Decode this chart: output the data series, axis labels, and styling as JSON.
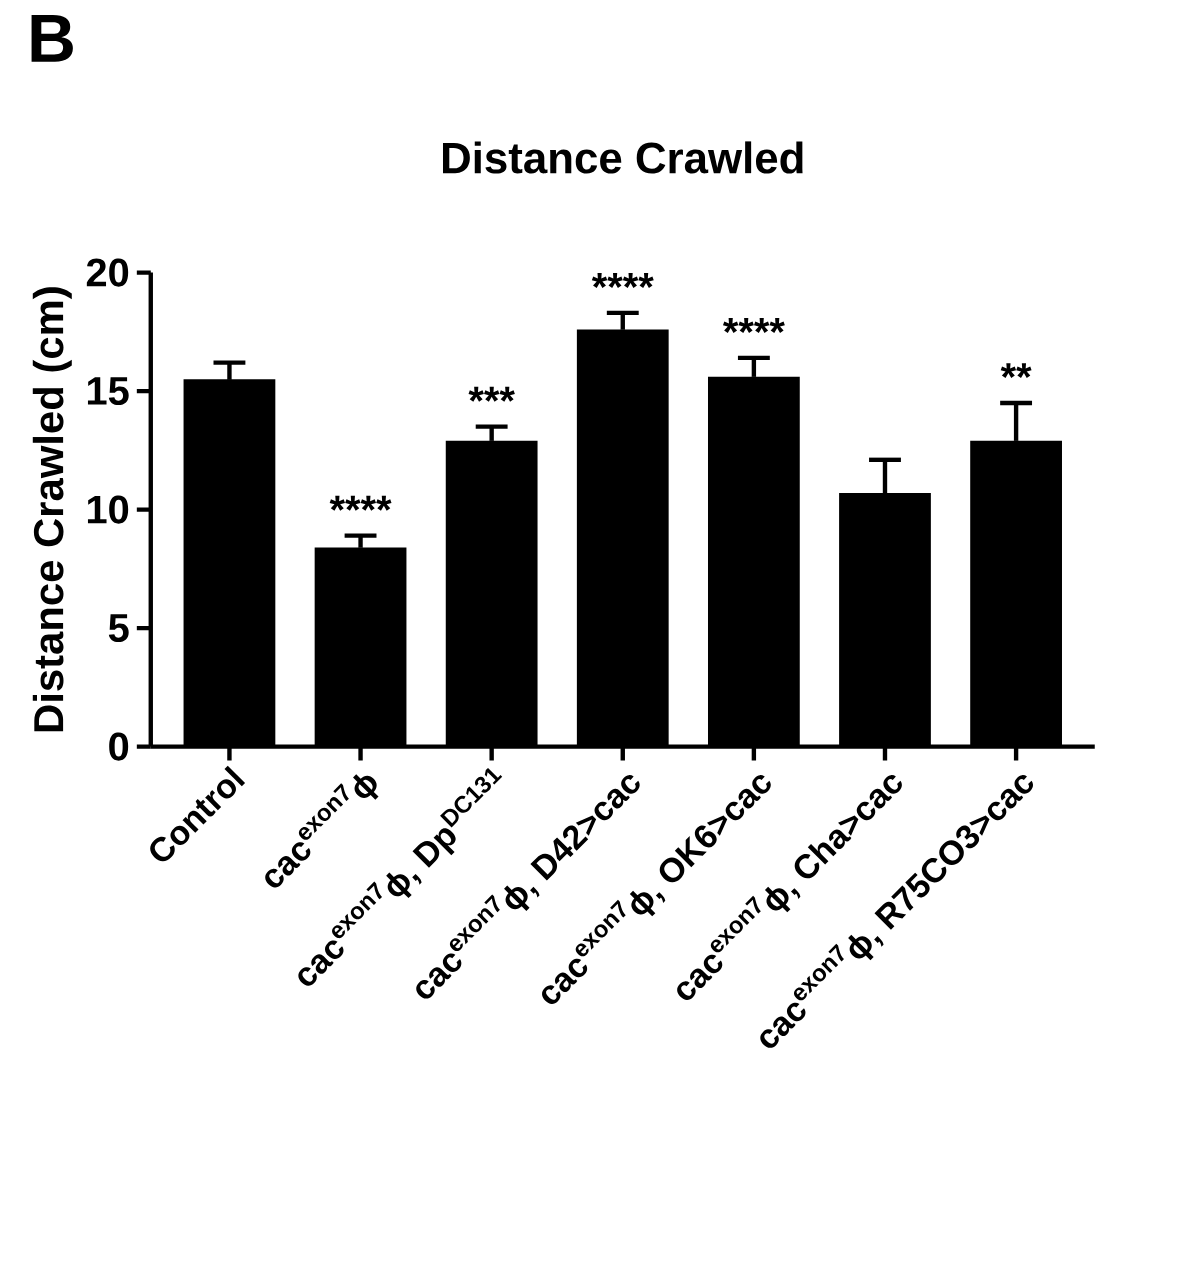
{
  "chart_data": {
    "type": "bar",
    "title": "Distance Crawled",
    "ylabel": "Distance Crawled (cm)",
    "categories": [
      "Control",
      "cac$^{exon7}$ϕ",
      "cac$^{exon7}$ϕ, Dp$^{DC131}$",
      "cac$^{exon7}$ϕ, D42>cac",
      "cac$^{exon7}$ϕ, OK6>cac",
      "cac$^{exon7}$ϕ, Cha>cac",
      "cac$^{exon7}$ϕ, R75CO3>cac"
    ],
    "values": [
      15.5,
      8.4,
      12.9,
      17.6,
      15.6,
      10.7,
      12.9
    ],
    "errors": [
      0.7,
      0.5,
      0.6,
      0.7,
      0.8,
      1.4,
      1.6
    ],
    "color": "#000000",
    "value_labels": [
      null,
      "****",
      "***",
      "****",
      "****",
      null,
      "**"
    ],
    "ylim": [
      0,
      20
    ],
    "yticks": [
      0,
      5,
      10,
      15,
      20
    ],
    "grid": false,
    "annotations": [
      "B"
    ]
  }
}
